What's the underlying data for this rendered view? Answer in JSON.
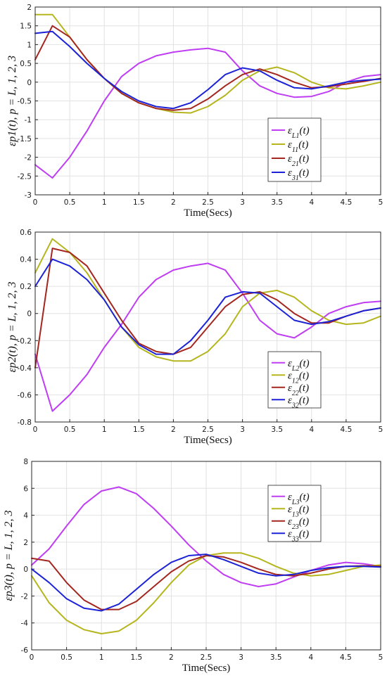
{
  "colors": {
    "eL": "#bf3df2",
    "e1": "#b5b51e",
    "e2": "#a3261f",
    "e3": "#1c22d6"
  },
  "chart_data": [
    {
      "type": "line",
      "xlabel": "Time(Secs)",
      "ylabel": "εp1(t), p = L, 1, 2, 3",
      "xlim": [
        0,
        5
      ],
      "ylim": [
        -3,
        2
      ],
      "xticks": [
        "0",
        "0.5",
        "1",
        "1.5",
        "2",
        "2.5",
        "3",
        "3.5",
        "4",
        "4.5",
        "5"
      ],
      "yticks": [
        "-3",
        "-2.5",
        "-2",
        "-1.5",
        "-1",
        "-0.5",
        "0",
        "0.5",
        "1",
        "1.5",
        "2"
      ],
      "grid": true,
      "legend_position": "lower-right",
      "x": [
        0,
        0.25,
        0.5,
        0.75,
        1,
        1.25,
        1.5,
        1.75,
        2,
        2.25,
        2.5,
        2.75,
        3,
        3.25,
        3.5,
        3.75,
        4,
        4.25,
        4.5,
        4.75,
        5
      ],
      "series": [
        {
          "name": "εL1(t)",
          "color_key": "eL",
          "values": [
            -2.2,
            -2.55,
            -2.0,
            -1.3,
            -0.5,
            0.15,
            0.5,
            0.7,
            0.8,
            0.86,
            0.9,
            0.8,
            0.3,
            -0.1,
            -0.3,
            -0.4,
            -0.38,
            -0.25,
            0.0,
            0.15,
            0.2
          ]
        },
        {
          "name": "ε11(t)",
          "color_key": "e1",
          "values": [
            1.8,
            1.8,
            1.2,
            0.6,
            0.1,
            -0.3,
            -0.55,
            -0.7,
            -0.8,
            -0.82,
            -0.65,
            -0.35,
            0.05,
            0.3,
            0.4,
            0.25,
            0.0,
            -0.15,
            -0.18,
            -0.1,
            0.0
          ]
        },
        {
          "name": "ε21(t)",
          "color_key": "e2",
          "values": [
            0.6,
            1.5,
            1.2,
            0.6,
            0.1,
            -0.3,
            -0.55,
            -0.7,
            -0.75,
            -0.7,
            -0.45,
            -0.1,
            0.2,
            0.35,
            0.2,
            0.0,
            -0.15,
            -0.12,
            -0.05,
            0.02,
            0.1
          ]
        },
        {
          "name": "ε31(t)",
          "color_key": "e3",
          "values": [
            1.3,
            1.35,
            0.95,
            0.5,
            0.1,
            -0.25,
            -0.5,
            -0.65,
            -0.7,
            -0.55,
            -0.2,
            0.2,
            0.38,
            0.3,
            0.05,
            -0.15,
            -0.18,
            -0.1,
            0.0,
            0.05,
            0.08
          ]
        }
      ]
    },
    {
      "type": "line",
      "xlabel": "Time(Secs)",
      "ylabel": "εp2(t), p = L, 1, 2, 3",
      "xlim": [
        0,
        5
      ],
      "ylim": [
        -0.8,
        0.6
      ],
      "xticks": [
        "0",
        "0.5",
        "1",
        "1.5",
        "2",
        "2.5",
        "3",
        "3.5",
        "4",
        "4.5",
        "5"
      ],
      "yticks": [
        "-0.8",
        "-0.6",
        "-0.4",
        "-0.2",
        "0",
        "0.2",
        "0.4",
        "0.6"
      ],
      "grid": true,
      "legend_position": "lower-right",
      "x": [
        0,
        0.25,
        0.5,
        0.75,
        1,
        1.25,
        1.5,
        1.75,
        2,
        2.25,
        2.5,
        2.75,
        3,
        3.25,
        3.5,
        3.75,
        4,
        4.25,
        4.5,
        4.75,
        5
      ],
      "series": [
        {
          "name": "εL2(t)",
          "color_key": "eL",
          "values": [
            -0.3,
            -0.72,
            -0.6,
            -0.45,
            -0.25,
            -0.08,
            0.12,
            0.25,
            0.32,
            0.35,
            0.37,
            0.32,
            0.15,
            -0.05,
            -0.15,
            -0.18,
            -0.1,
            0.0,
            0.05,
            0.08,
            0.09
          ]
        },
        {
          "name": "ε12(t)",
          "color_key": "e1",
          "values": [
            0.3,
            0.55,
            0.45,
            0.3,
            0.1,
            -0.1,
            -0.25,
            -0.32,
            -0.35,
            -0.35,
            -0.28,
            -0.15,
            0.05,
            0.15,
            0.17,
            0.12,
            0.02,
            -0.05,
            -0.08,
            -0.07,
            -0.02
          ]
        },
        {
          "name": "ε22(t)",
          "color_key": "e2",
          "values": [
            -0.4,
            0.48,
            0.45,
            0.35,
            0.15,
            -0.05,
            -0.22,
            -0.28,
            -0.3,
            -0.25,
            -0.1,
            0.05,
            0.14,
            0.16,
            0.1,
            0.0,
            -0.07,
            -0.07,
            -0.02,
            0.02,
            0.04
          ]
        },
        {
          "name": "ε32(t)",
          "color_key": "e3",
          "values": [
            0.2,
            0.4,
            0.35,
            0.25,
            0.1,
            -0.1,
            -0.23,
            -0.3,
            -0.3,
            -0.2,
            -0.05,
            0.12,
            0.16,
            0.15,
            0.05,
            -0.05,
            -0.08,
            -0.06,
            -0.02,
            0.02,
            0.04
          ]
        }
      ]
    },
    {
      "type": "line",
      "xlabel": "Time(Secs)",
      "ylabel": "εp3(t), p = L, 1, 2, 3",
      "xlim": [
        0,
        5
      ],
      "ylim": [
        -6,
        8
      ],
      "xticks": [
        "0",
        "0.5",
        "1",
        "1.5",
        "2",
        "2.5",
        "3",
        "3.5",
        "4",
        "4.5",
        "5"
      ],
      "yticks": [
        "-6",
        "-4",
        "-2",
        "0",
        "2",
        "4",
        "6",
        "8"
      ],
      "grid": true,
      "legend_position": "upper-right",
      "x": [
        0,
        0.25,
        0.5,
        0.75,
        1,
        1.25,
        1.5,
        1.75,
        2,
        2.25,
        2.5,
        2.75,
        3,
        3.25,
        3.5,
        3.75,
        4,
        4.25,
        4.5,
        4.75,
        5
      ],
      "series": [
        {
          "name": "εL3(t)",
          "color_key": "eL",
          "values": [
            0.3,
            1.5,
            3.2,
            4.8,
            5.8,
            6.1,
            5.6,
            4.5,
            3.2,
            1.8,
            0.6,
            -0.4,
            -1.0,
            -1.3,
            -1.1,
            -0.6,
            -0.1,
            0.3,
            0.5,
            0.4,
            0.2
          ]
        },
        {
          "name": "ε13(t)",
          "color_key": "e1",
          "values": [
            -0.5,
            -2.5,
            -3.8,
            -4.5,
            -4.8,
            -4.6,
            -3.8,
            -2.5,
            -1.0,
            0.3,
            1.0,
            1.2,
            1.2,
            0.8,
            0.2,
            -0.3,
            -0.5,
            -0.4,
            -0.1,
            0.2,
            0.3
          ]
        },
        {
          "name": "ε23(t)",
          "color_key": "e2",
          "values": [
            0.8,
            0.6,
            -1.0,
            -2.3,
            -3.0,
            -3.0,
            -2.4,
            -1.3,
            -0.2,
            0.6,
            1.0,
            0.9,
            0.5,
            0.0,
            -0.4,
            -0.5,
            -0.3,
            0.0,
            0.2,
            0.25,
            0.2
          ]
        },
        {
          "name": "ε33(t)",
          "color_key": "e3",
          "values": [
            0.0,
            -1.0,
            -2.2,
            -2.9,
            -3.1,
            -2.6,
            -1.5,
            -0.4,
            0.5,
            1.0,
            1.1,
            0.7,
            0.2,
            -0.3,
            -0.5,
            -0.4,
            -0.1,
            0.1,
            0.2,
            0.2,
            0.15
          ]
        }
      ]
    }
  ]
}
